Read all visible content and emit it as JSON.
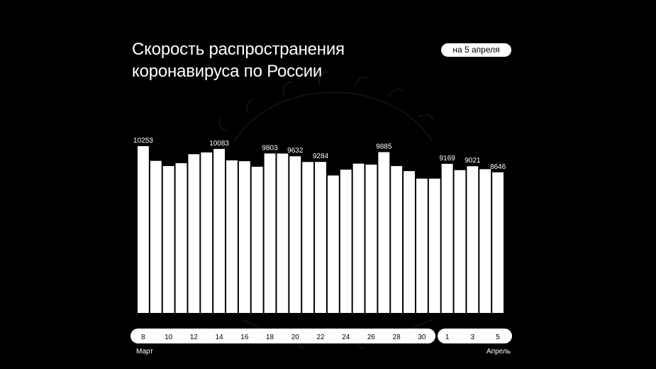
{
  "title_lines": [
    "Скорость распространения",
    "коронавируса по России"
  ],
  "date_badge": "на 5 апреля",
  "colors": {
    "background": "#000000",
    "bar": "#ffffff",
    "text": "#ffffff",
    "pill": "#ffffff",
    "pill_text": "#000000"
  },
  "chart_data": {
    "type": "bar",
    "title": "Скорость распространения коронавируса по России",
    "categories": [
      "8",
      "9",
      "10",
      "11",
      "12",
      "13",
      "14",
      "15",
      "16",
      "17",
      "18",
      "19",
      "20",
      "21",
      "22",
      "23",
      "24",
      "25",
      "26",
      "27",
      "28",
      "29",
      "30",
      "31",
      "1",
      "2",
      "3",
      "4",
      "5"
    ],
    "values": [
      10253,
      9350,
      9030,
      9210,
      9760,
      9870,
      10083,
      9380,
      9330,
      8990,
      9803,
      9800,
      9632,
      9280,
      9284,
      8450,
      8810,
      9180,
      9120,
      9885,
      9030,
      8720,
      8260,
      8260,
      9169,
      8780,
      9021,
      8840,
      8646
    ],
    "value_labels": [
      {
        "index": 0,
        "text": "10253"
      },
      {
        "index": 6,
        "text": "10083"
      },
      {
        "index": 10,
        "text": "9803"
      },
      {
        "index": 12,
        "text": "9632"
      },
      {
        "index": 14,
        "text": "9284"
      },
      {
        "index": 19,
        "text": "9885"
      },
      {
        "index": 24,
        "text": "9169"
      },
      {
        "index": 26,
        "text": "9021"
      },
      {
        "index": 28,
        "text": "8646"
      }
    ],
    "ylim": [
      0,
      10253
    ],
    "grid": false,
    "x_axis": {
      "march_ticks": [
        {
          "index": 0,
          "label": "8"
        },
        {
          "index": 2,
          "label": "10"
        },
        {
          "index": 4,
          "label": "12"
        },
        {
          "index": 6,
          "label": "14"
        },
        {
          "index": 8,
          "label": "16"
        },
        {
          "index": 10,
          "label": "18"
        },
        {
          "index": 12,
          "label": "20"
        },
        {
          "index": 14,
          "label": "22"
        },
        {
          "index": 16,
          "label": "24"
        },
        {
          "index": 18,
          "label": "26"
        },
        {
          "index": 20,
          "label": "28"
        },
        {
          "index": 22,
          "label": "30"
        }
      ],
      "april_ticks": [
        {
          "index": 24,
          "label": "1"
        },
        {
          "index": 26,
          "label": "3"
        },
        {
          "index": 28,
          "label": "5"
        }
      ],
      "month_start": "Март",
      "month_end": "Апрель"
    }
  }
}
